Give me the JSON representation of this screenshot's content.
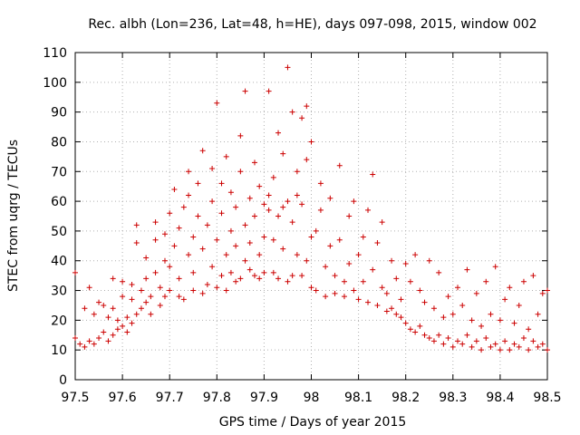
{
  "chart_data": {
    "type": "scatter",
    "title": "Rec. albh (Lon=236, Lat=48, h=HE), days 097-098, 2015, window 002",
    "xlabel": "GPS time / Days of year 2015",
    "ylabel": "STEC from uqrg / TECUs",
    "xlim": [
      97.5,
      98.5
    ],
    "ylim": [
      0,
      110
    ],
    "xticks": [
      "97.5",
      "97.6",
      "97.7",
      "97.8",
      "97.9",
      "98",
      "98.1",
      "98.2",
      "98.3",
      "98.4",
      "98.5"
    ],
    "yticks": [
      "0",
      "10",
      "20",
      "30",
      "40",
      "50",
      "60",
      "70",
      "80",
      "90",
      "100",
      "110"
    ],
    "grid": true,
    "marker": "+",
    "color": "#cc0000",
    "points": [
      [
        97.5,
        36
      ],
      [
        97.5,
        14
      ],
      [
        97.51,
        12
      ],
      [
        97.52,
        11
      ],
      [
        97.52,
        24
      ],
      [
        97.53,
        31
      ],
      [
        97.53,
        13
      ],
      [
        97.54,
        12
      ],
      [
        97.54,
        22
      ],
      [
        97.55,
        26
      ],
      [
        97.55,
        14
      ],
      [
        97.56,
        16
      ],
      [
        97.56,
        25
      ],
      [
        97.57,
        21
      ],
      [
        97.57,
        13
      ],
      [
        97.58,
        15
      ],
      [
        97.58,
        24
      ],
      [
        97.58,
        34
      ],
      [
        97.59,
        17
      ],
      [
        97.59,
        20
      ],
      [
        97.6,
        18
      ],
      [
        97.6,
        28
      ],
      [
        97.6,
        33
      ],
      [
        97.61,
        21
      ],
      [
        97.61,
        16
      ],
      [
        97.62,
        32
      ],
      [
        97.62,
        19
      ],
      [
        97.62,
        27
      ],
      [
        97.63,
        22
      ],
      [
        97.63,
        46
      ],
      [
        97.63,
        52
      ],
      [
        97.64,
        24
      ],
      [
        97.64,
        30
      ],
      [
        97.65,
        34
      ],
      [
        97.65,
        41
      ],
      [
        97.65,
        26
      ],
      [
        97.66,
        22
      ],
      [
        97.66,
        28
      ],
      [
        97.67,
        36
      ],
      [
        97.67,
        47
      ],
      [
        97.67,
        53
      ],
      [
        97.68,
        25
      ],
      [
        97.68,
        31
      ],
      [
        97.69,
        40
      ],
      [
        97.69,
        49
      ],
      [
        97.69,
        28
      ],
      [
        97.7,
        30
      ],
      [
        97.7,
        38
      ],
      [
        97.7,
        56
      ],
      [
        97.71,
        64
      ],
      [
        97.71,
        45
      ],
      [
        97.72,
        28
      ],
      [
        97.72,
        34
      ],
      [
        97.72,
        51
      ],
      [
        97.73,
        58
      ],
      [
        97.73,
        27
      ],
      [
        97.74,
        42
      ],
      [
        97.74,
        62
      ],
      [
        97.74,
        70
      ],
      [
        97.75,
        30
      ],
      [
        97.75,
        36
      ],
      [
        97.75,
        48
      ],
      [
        97.76,
        55
      ],
      [
        97.76,
        66
      ],
      [
        97.77,
        29
      ],
      [
        97.77,
        44
      ],
      [
        97.77,
        77
      ],
      [
        97.78,
        32
      ],
      [
        97.78,
        52
      ],
      [
        97.79,
        60
      ],
      [
        97.79,
        71
      ],
      [
        97.79,
        38
      ],
      [
        97.8,
        31
      ],
      [
        97.8,
        47
      ],
      [
        97.8,
        93
      ],
      [
        97.81,
        35
      ],
      [
        97.81,
        56
      ],
      [
        97.81,
        66
      ],
      [
        97.82,
        42
      ],
      [
        97.82,
        30
      ],
      [
        97.82,
        75
      ],
      [
        97.83,
        50
      ],
      [
        97.83,
        36
      ],
      [
        97.83,
        63
      ],
      [
        97.84,
        33
      ],
      [
        97.84,
        58
      ],
      [
        97.84,
        45
      ],
      [
        97.85,
        34
      ],
      [
        97.85,
        82
      ],
      [
        97.85,
        70
      ],
      [
        97.86,
        40
      ],
      [
        97.86,
        52
      ],
      [
        97.86,
        97
      ],
      [
        97.87,
        37
      ],
      [
        97.87,
        61
      ],
      [
        97.87,
        46
      ],
      [
        97.88,
        35
      ],
      [
        97.88,
        73
      ],
      [
        97.88,
        55
      ],
      [
        97.89,
        42
      ],
      [
        97.89,
        65
      ],
      [
        97.89,
        34
      ],
      [
        97.9,
        48
      ],
      [
        97.9,
        59
      ],
      [
        97.9,
        36
      ],
      [
        97.91,
        57
      ],
      [
        97.91,
        62
      ],
      [
        97.91,
        97
      ],
      [
        97.92,
        36
      ],
      [
        97.92,
        47
      ],
      [
        97.92,
        68
      ],
      [
        97.93,
        55
      ],
      [
        97.93,
        34
      ],
      [
        97.93,
        83
      ],
      [
        97.94,
        58
      ],
      [
        97.94,
        44
      ],
      [
        97.94,
        76
      ],
      [
        97.95,
        105
      ],
      [
        97.95,
        33
      ],
      [
        97.95,
        60
      ],
      [
        97.96,
        53
      ],
      [
        97.96,
        35
      ],
      [
        97.96,
        90
      ],
      [
        97.97,
        70
      ],
      [
        97.97,
        42
      ],
      [
        97.97,
        62
      ],
      [
        97.98,
        88
      ],
      [
        97.98,
        35
      ],
      [
        97.98,
        59
      ],
      [
        97.99,
        74
      ],
      [
        97.99,
        40
      ],
      [
        97.99,
        92
      ],
      [
        98.0,
        31
      ],
      [
        98.0,
        80
      ],
      [
        98.0,
        48
      ],
      [
        98.01,
        50
      ],
      [
        98.01,
        30
      ],
      [
        98.02,
        66
      ],
      [
        98.02,
        57
      ],
      [
        98.03,
        38
      ],
      [
        98.03,
        28
      ],
      [
        98.04,
        61
      ],
      [
        98.04,
        45
      ],
      [
        98.05,
        35
      ],
      [
        98.05,
        29
      ],
      [
        98.06,
        72
      ],
      [
        98.06,
        47
      ],
      [
        98.07,
        33
      ],
      [
        98.07,
        28
      ],
      [
        98.08,
        55
      ],
      [
        98.08,
        39
      ],
      [
        98.09,
        60
      ],
      [
        98.09,
        30
      ],
      [
        98.1,
        42
      ],
      [
        98.1,
        27
      ],
      [
        98.11,
        48
      ],
      [
        98.11,
        33
      ],
      [
        98.12,
        57
      ],
      [
        98.12,
        26
      ],
      [
        98.13,
        69
      ],
      [
        98.13,
        37
      ],
      [
        98.14,
        46
      ],
      [
        98.14,
        25
      ],
      [
        98.15,
        31
      ],
      [
        98.15,
        53
      ],
      [
        98.16,
        29
      ],
      [
        98.16,
        23
      ],
      [
        98.17,
        40
      ],
      [
        98.17,
        24
      ],
      [
        98.18,
        34
      ],
      [
        98.18,
        22
      ],
      [
        98.19,
        27
      ],
      [
        98.19,
        21
      ],
      [
        98.2,
        39
      ],
      [
        98.2,
        19
      ],
      [
        98.21,
        33
      ],
      [
        98.21,
        17
      ],
      [
        98.22,
        42
      ],
      [
        98.22,
        16
      ],
      [
        98.23,
        30
      ],
      [
        98.23,
        18
      ],
      [
        98.24,
        26
      ],
      [
        98.24,
        15
      ],
      [
        98.25,
        40
      ],
      [
        98.25,
        14
      ],
      [
        98.26,
        24
      ],
      [
        98.26,
        13
      ],
      [
        98.27,
        36
      ],
      [
        98.27,
        15
      ],
      [
        98.28,
        21
      ],
      [
        98.28,
        12
      ],
      [
        98.29,
        28
      ],
      [
        98.29,
        14
      ],
      [
        98.3,
        22
      ],
      [
        98.3,
        11
      ],
      [
        98.31,
        31
      ],
      [
        98.31,
        13
      ],
      [
        98.32,
        25
      ],
      [
        98.32,
        12
      ],
      [
        98.33,
        37
      ],
      [
        98.33,
        15
      ],
      [
        98.34,
        20
      ],
      [
        98.34,
        11
      ],
      [
        98.35,
        29
      ],
      [
        98.35,
        13
      ],
      [
        98.36,
        18
      ],
      [
        98.36,
        10
      ],
      [
        98.37,
        33
      ],
      [
        98.37,
        14
      ],
      [
        98.38,
        22
      ],
      [
        98.38,
        11
      ],
      [
        98.39,
        38
      ],
      [
        98.39,
        12
      ],
      [
        98.4,
        20
      ],
      [
        98.4,
        10
      ],
      [
        98.41,
        27
      ],
      [
        98.41,
        13
      ],
      [
        98.42,
        31
      ],
      [
        98.42,
        10
      ],
      [
        98.43,
        19
      ],
      [
        98.43,
        12
      ],
      [
        98.44,
        25
      ],
      [
        98.44,
        11
      ],
      [
        98.45,
        33
      ],
      [
        98.45,
        14
      ],
      [
        98.46,
        17
      ],
      [
        98.46,
        10
      ],
      [
        98.47,
        35
      ],
      [
        98.47,
        13
      ],
      [
        98.48,
        22
      ],
      [
        98.48,
        11
      ],
      [
        98.49,
        29
      ],
      [
        98.49,
        12
      ],
      [
        98.5,
        30
      ],
      [
        98.5,
        10
      ]
    ]
  }
}
